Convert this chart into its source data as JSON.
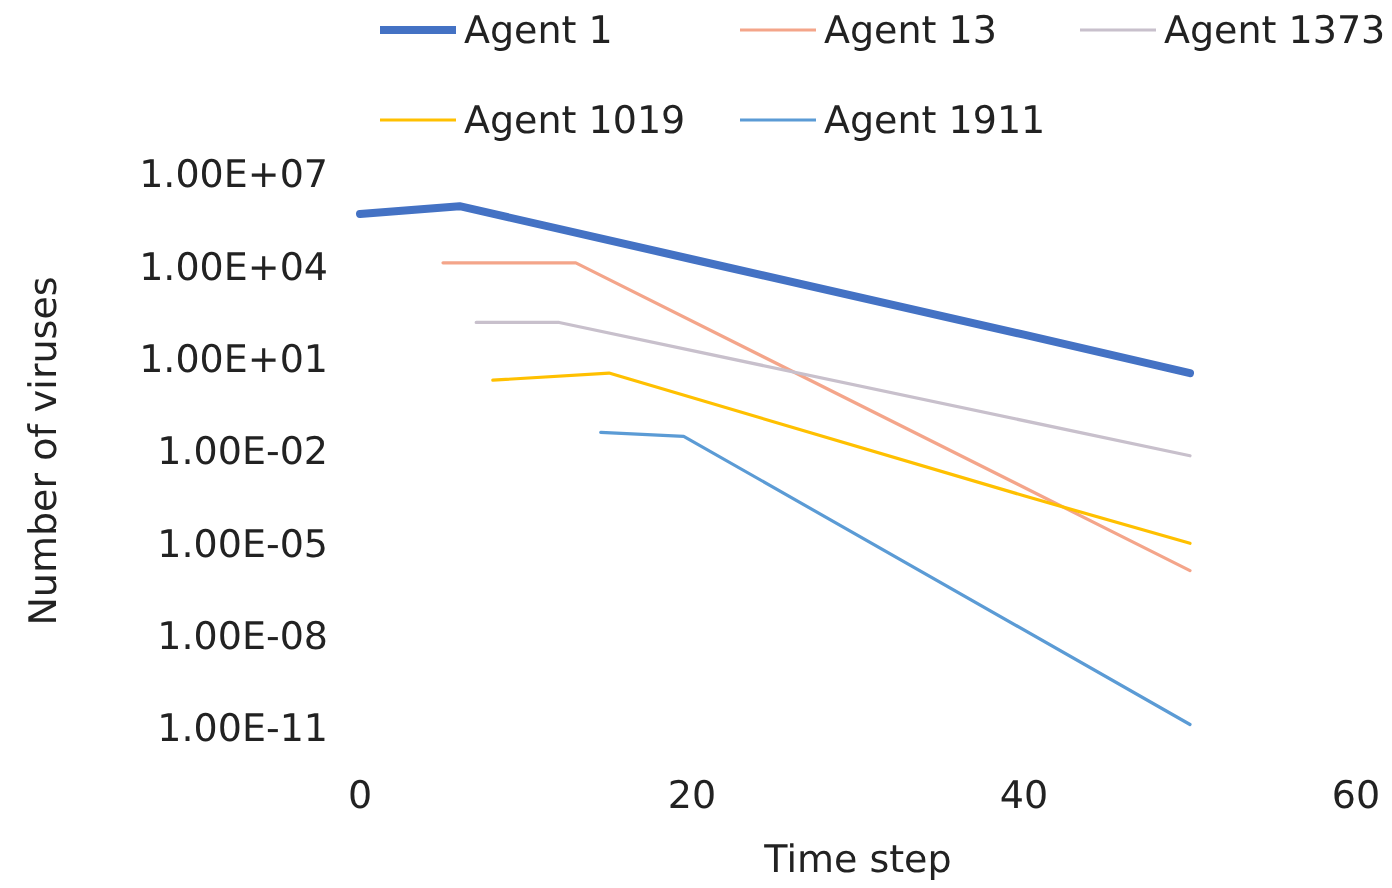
{
  "chart_data": {
    "type": "line",
    "xlabel": "Time step",
    "ylabel": "Number of viruses",
    "log": "y",
    "legend": "top",
    "grid": false,
    "marker": "none",
    "line_style": "solid",
    "xlim": [
      0,
      60
    ],
    "xticks": [
      0,
      20,
      40,
      60
    ],
    "ylim": [
      1e-11,
      10000000.0
    ],
    "yticks": [
      {
        "value": 1e-11,
        "label": "1.00E-11"
      },
      {
        "value": 1e-08,
        "label": "1.00E-08"
      },
      {
        "value": 1e-05,
        "label": "1.00E-05"
      },
      {
        "value": 0.01,
        "label": "1.00E-02"
      },
      {
        "value": 10,
        "label": "1.00E+01"
      },
      {
        "value": 10000,
        "label": "1.00E+04"
      },
      {
        "value": 10000000,
        "label": "1.00E+07"
      }
    ],
    "series": [
      {
        "name": "Agent 1",
        "color": "#4472c4",
        "x": [
          0,
          6,
          20,
          40,
          50
        ],
        "values": [
          500000,
          900000,
          17000,
          60,
          3.4
        ]
      },
      {
        "name": "Agent 13",
        "color": "#f4a58a",
        "x": [
          5,
          13,
          50
        ],
        "values": [
          13000,
          13000,
          1.3e-06
        ]
      },
      {
        "name": "Agent 1373",
        "color": "#c8c0cc",
        "x": [
          7,
          12,
          50
        ],
        "values": [
          150,
          150,
          0.007
        ]
      },
      {
        "name": "Agent 1019",
        "color": "#ffc000",
        "x": [
          8,
          15,
          40,
          50
        ],
        "values": [
          2,
          3.4,
          0.00035,
          1e-05
        ]
      },
      {
        "name": "Agent 1911",
        "color": "#5b9bd5",
        "x": [
          14.5,
          19.5,
          50
        ],
        "values": [
          0.04,
          0.03,
          1.3e-11
        ]
      }
    ]
  }
}
